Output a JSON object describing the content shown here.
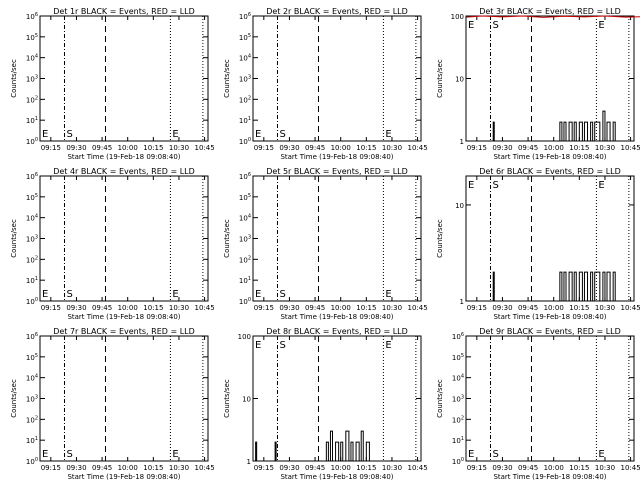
{
  "colors": {
    "events": "#000000",
    "lld": "#cc0000",
    "background": "#ffffff"
  },
  "chart_data": [
    {
      "title": "Det 1r BLACK = Events, RED = LLD",
      "type": "line",
      "scale": "log",
      "xlabel": "Start Time (19-Feb-18 09:08:40)",
      "ylabel": "Counts/sec",
      "xticks": [
        "09:15",
        "09:30",
        "09:45",
        "10:00",
        "10:15",
        "10:30",
        "10:45"
      ],
      "yticks": [
        "10^0",
        "10^1",
        "10^2",
        "10^3",
        "10^4",
        "10^5",
        "10^6"
      ],
      "markers": [
        {
          "label": "E",
          "time": "09:08:40"
        },
        {
          "label": "S",
          "time": "09:23"
        },
        {
          "label": "E",
          "time": "10:25"
        }
      ],
      "events": [],
      "lld": []
    },
    {
      "title": "Det 2r BLACK = Events, RED = LLD",
      "type": "line",
      "scale": "log",
      "xlabel": "Start Time (19-Feb-18 09:08:40)",
      "ylabel": "Counts/sec",
      "xticks": [
        "09:15",
        "09:30",
        "09:45",
        "10:00",
        "10:15",
        "10:30",
        "10:45"
      ],
      "yticks": [
        "10^0",
        "10^1",
        "10^2",
        "10^3",
        "10^4",
        "10^5",
        "10^6"
      ],
      "markers": [
        {
          "label": "E",
          "time": "09:08:40"
        },
        {
          "label": "S",
          "time": "09:23"
        },
        {
          "label": "E",
          "time": "10:25"
        }
      ],
      "events": [],
      "lld": []
    },
    {
      "title": "Det 3r BLACK = Events, RED = LLD",
      "type": "line",
      "scale": "log",
      "xlabel": "Start Time (19-Feb-18 09:08:40)",
      "ylabel": "Counts/sec",
      "xticks": [
        "09:15",
        "09:30",
        "09:45",
        "10:00",
        "10:15",
        "10:30",
        "10:45"
      ],
      "yticks": [
        "1",
        "10",
        "100"
      ],
      "ylim": [
        1,
        100
      ],
      "markers": [
        {
          "label": "E",
          "time": "09:08:40"
        },
        {
          "label": "S",
          "time": "09:23"
        },
        {
          "label": "E",
          "time": "10:25"
        }
      ],
      "events": [
        [
          9.4,
          1
        ],
        [
          9.41,
          2
        ],
        [
          9.42,
          1
        ],
        [
          10.05,
          1
        ],
        [
          10.06,
          2
        ],
        [
          10.08,
          1
        ],
        [
          10.1,
          2
        ],
        [
          10.12,
          1
        ],
        [
          10.15,
          2
        ],
        [
          10.18,
          1
        ],
        [
          10.2,
          2
        ],
        [
          10.22,
          1
        ],
        [
          10.25,
          2
        ],
        [
          10.28,
          1
        ],
        [
          10.3,
          2
        ],
        [
          10.33,
          1
        ],
        [
          10.36,
          2
        ],
        [
          10.38,
          1
        ],
        [
          10.4,
          2
        ],
        [
          10.45,
          1
        ],
        [
          10.48,
          3
        ],
        [
          10.5,
          1
        ],
        [
          10.52,
          2
        ],
        [
          10.55,
          1
        ],
        [
          10.58,
          2
        ],
        [
          10.6,
          1
        ]
      ],
      "lld": [
        [
          9.15,
          96
        ],
        [
          9.3,
          100
        ],
        [
          9.5,
          97
        ],
        [
          9.7,
          100
        ],
        [
          9.9,
          95
        ],
        [
          10.1,
          99
        ],
        [
          10.3,
          97
        ],
        [
          10.5,
          100
        ],
        [
          10.7,
          96
        ],
        [
          10.9,
          98
        ]
      ]
    },
    {
      "title": "Det 4r BLACK = Events, RED = LLD",
      "type": "line",
      "scale": "log",
      "xlabel": "Start Time (19-Feb-18 09:08:40)",
      "ylabel": "Counts/sec",
      "xticks": [
        "09:15",
        "09:30",
        "09:45",
        "10:00",
        "10:15",
        "10:30",
        "10:45"
      ],
      "yticks": [
        "10^0",
        "10^1",
        "10^2",
        "10^3",
        "10^4",
        "10^5",
        "10^6"
      ],
      "markers": [
        {
          "label": "E",
          "time": "09:08:40"
        },
        {
          "label": "S",
          "time": "09:23"
        },
        {
          "label": "E",
          "time": "10:25"
        }
      ],
      "events": [],
      "lld": []
    },
    {
      "title": "Det 5r BLACK = Events, RED = LLD",
      "type": "line",
      "scale": "log",
      "xlabel": "Start Time (19-Feb-18 09:08:40)",
      "ylabel": "Counts/sec",
      "xticks": [
        "09:15",
        "09:30",
        "09:45",
        "10:00",
        "10:15",
        "10:30",
        "10:45"
      ],
      "yticks": [
        "10^0",
        "10^1",
        "10^2",
        "10^3",
        "10^4",
        "10^5",
        "10^6"
      ],
      "markers": [
        {
          "label": "E",
          "time": "09:08:40"
        },
        {
          "label": "S",
          "time": "09:23"
        },
        {
          "label": "E",
          "time": "10:25"
        }
      ],
      "events": [],
      "lld": []
    },
    {
      "title": "Det 6r BLACK = Events, RED = LLD",
      "type": "line",
      "scale": "log",
      "xlabel": "Start Time (19-Feb-18 09:08:40)",
      "ylabel": "Counts/sec",
      "xticks": [
        "09:15",
        "09:30",
        "09:45",
        "10:00",
        "10:15",
        "10:30",
        "10:45"
      ],
      "yticks": [
        "1",
        "10"
      ],
      "ylim": [
        1,
        20
      ],
      "markers": [
        {
          "label": "E",
          "time": "09:08:40"
        },
        {
          "label": "S",
          "time": "09:23"
        },
        {
          "label": "E",
          "time": "10:25"
        }
      ],
      "events": [
        [
          9.4,
          1
        ],
        [
          9.41,
          2
        ],
        [
          9.42,
          1
        ],
        [
          10.05,
          1
        ],
        [
          10.06,
          2
        ],
        [
          10.08,
          1
        ],
        [
          10.1,
          2
        ],
        [
          10.12,
          1
        ],
        [
          10.15,
          2
        ],
        [
          10.18,
          1
        ],
        [
          10.2,
          2
        ],
        [
          10.22,
          1
        ],
        [
          10.25,
          2
        ],
        [
          10.28,
          1
        ],
        [
          10.3,
          2
        ],
        [
          10.33,
          1
        ],
        [
          10.36,
          2
        ],
        [
          10.38,
          1
        ],
        [
          10.4,
          2
        ],
        [
          10.45,
          1
        ],
        [
          10.48,
          2
        ],
        [
          10.5,
          1
        ],
        [
          10.52,
          2
        ],
        [
          10.55,
          1
        ],
        [
          10.58,
          2
        ],
        [
          10.6,
          1
        ]
      ],
      "lld": []
    },
    {
      "title": "Det 7r BLACK = Events, RED = LLD",
      "type": "line",
      "scale": "log",
      "xlabel": "Start Time (19-Feb-18 09:08:40)",
      "ylabel": "Counts/sec",
      "xticks": [
        "09:15",
        "09:30",
        "09:45",
        "10:00",
        "10:15",
        "10:30",
        "10:45"
      ],
      "yticks": [
        "10^0",
        "10^1",
        "10^2",
        "10^3",
        "10^4",
        "10^5",
        "10^6"
      ],
      "markers": [
        {
          "label": "E",
          "time": "09:08:40"
        },
        {
          "label": "S",
          "time": "09:23"
        },
        {
          "label": "E",
          "time": "10:25"
        }
      ],
      "events": [],
      "lld": []
    },
    {
      "title": "Det 8r BLACK = Events, RED = LLD",
      "type": "line",
      "scale": "log",
      "xlabel": "Start Time (19-Feb-18 09:08:40)",
      "ylabel": "Counts/sec",
      "xticks": [
        "09:15",
        "09:30",
        "09:45",
        "10:00",
        "10:15",
        "10:30",
        "10:45"
      ],
      "yticks": [
        "1",
        "10",
        "100"
      ],
      "ylim": [
        1,
        100
      ],
      "markers": [
        {
          "label": "E",
          "time": "09:08:40"
        },
        {
          "label": "S",
          "time": "09:23"
        },
        {
          "label": "E",
          "time": "10:25"
        }
      ],
      "events": [
        [
          9.16,
          1
        ],
        [
          9.17,
          2
        ],
        [
          9.18,
          1
        ],
        [
          9.35,
          1
        ],
        [
          9.36,
          2
        ],
        [
          9.37,
          1
        ],
        [
          9.85,
          1
        ],
        [
          9.86,
          2
        ],
        [
          9.88,
          1
        ],
        [
          9.9,
          3
        ],
        [
          9.92,
          1
        ],
        [
          9.95,
          2
        ],
        [
          9.98,
          1
        ],
        [
          10.0,
          2
        ],
        [
          10.02,
          1
        ],
        [
          10.05,
          3
        ],
        [
          10.08,
          1
        ],
        [
          10.1,
          2
        ],
        [
          10.12,
          1
        ],
        [
          10.15,
          2
        ],
        [
          10.18,
          1
        ],
        [
          10.2,
          3
        ],
        [
          10.22,
          1
        ],
        [
          10.25,
          2
        ],
        [
          10.28,
          1
        ]
      ],
      "lld": []
    },
    {
      "title": "Det 9r BLACK = Events, RED = LLD",
      "type": "line",
      "scale": "log",
      "xlabel": "Start Time (19-Feb-18 09:08:40)",
      "ylabel": "Counts/sec",
      "xticks": [
        "09:15",
        "09:30",
        "09:45",
        "10:00",
        "10:15",
        "10:30",
        "10:45"
      ],
      "yticks": [
        "10^0",
        "10^1",
        "10^2",
        "10^3",
        "10^4",
        "10^5",
        "10^6"
      ],
      "markers": [
        {
          "label": "E",
          "time": "09:08:40"
        },
        {
          "label": "S",
          "time": "09:23"
        },
        {
          "label": "E",
          "time": "10:25"
        }
      ],
      "events": [],
      "lld": []
    }
  ]
}
